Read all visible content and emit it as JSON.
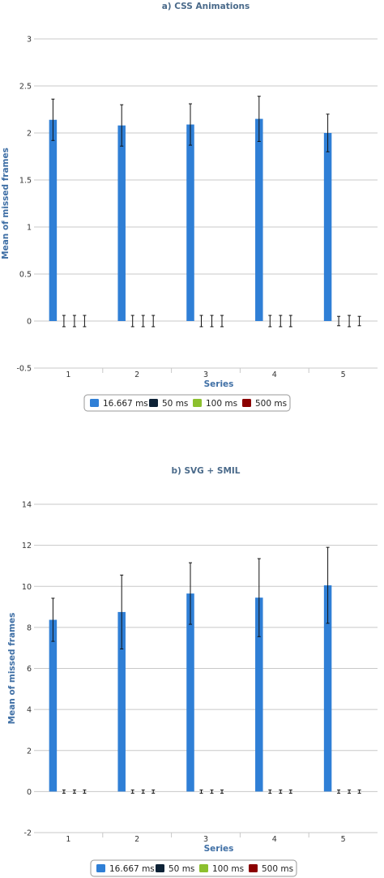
{
  "colors": {
    "series": [
      "#2f7fd6",
      "#0d2236",
      "#8cc02e",
      "#8b0000"
    ],
    "grid": "#c8c8c8",
    "axis_title": "#3f6fa5",
    "title": "#4a6a8a"
  },
  "chart_data": [
    {
      "type": "bar",
      "title": "a) CSS Animations",
      "xlabel": "Series",
      "ylabel": "Mean of missed frames",
      "ylim": [
        -0.5,
        3
      ],
      "yticks": [
        "3",
        "2.5",
        "2",
        "1.5",
        "1",
        "0.5",
        "0",
        "-0.5"
      ],
      "ytick_values": [
        3,
        2.5,
        2,
        1.5,
        1,
        0.5,
        0,
        -0.5
      ],
      "categories": [
        "1",
        "2",
        "3",
        "4",
        "5"
      ],
      "grid": true,
      "legend_position": "bottom",
      "series": [
        {
          "name": "16.667 ms",
          "values": [
            2.14,
            2.08,
            2.09,
            2.15,
            2.0
          ],
          "errors": [
            0.22,
            0.22,
            0.22,
            0.24,
            0.2
          ]
        },
        {
          "name": "50 ms",
          "values": [
            0,
            0,
            0,
            0,
            0
          ],
          "errors": [
            0.06,
            0.06,
            0.06,
            0.06,
            0.05
          ]
        },
        {
          "name": "100 ms",
          "values": [
            0,
            0,
            0,
            0,
            0
          ],
          "errors": [
            0.06,
            0.06,
            0.06,
            0.06,
            0.06
          ]
        },
        {
          "name": "500 ms",
          "values": [
            0,
            0,
            0,
            0,
            0
          ],
          "errors": [
            0.06,
            0.06,
            0.06,
            0.06,
            0.05
          ]
        }
      ]
    },
    {
      "type": "bar",
      "title": "b) SVG + SMIL",
      "xlabel": "Series",
      "ylabel": "Mean of missed frames",
      "ylim": [
        -2,
        14
      ],
      "yticks": [
        "14",
        "12",
        "10",
        "8",
        "6",
        "4",
        "2",
        "0",
        "-2"
      ],
      "ytick_values": [
        14,
        12,
        10,
        8,
        6,
        4,
        2,
        0,
        -2
      ],
      "categories": [
        "1",
        "2",
        "3",
        "4",
        "5"
      ],
      "grid": true,
      "legend_position": "bottom",
      "series": [
        {
          "name": "16.667 ms",
          "values": [
            8.37,
            8.75,
            9.65,
            9.45,
            10.05
          ],
          "errors": [
            1.05,
            1.8,
            1.5,
            1.9,
            1.85
          ]
        },
        {
          "name": "50 ms",
          "values": [
            0,
            0,
            0,
            0,
            0
          ],
          "errors": [
            0.08,
            0.08,
            0.08,
            0.08,
            0.08
          ]
        },
        {
          "name": "100 ms",
          "values": [
            0,
            0,
            0,
            0,
            0
          ],
          "errors": [
            0.08,
            0.08,
            0.08,
            0.08,
            0.08
          ]
        },
        {
          "name": "500 ms",
          "values": [
            0,
            0,
            0,
            0,
            0
          ],
          "errors": [
            0.08,
            0.08,
            0.08,
            0.08,
            0.08
          ]
        }
      ]
    }
  ]
}
